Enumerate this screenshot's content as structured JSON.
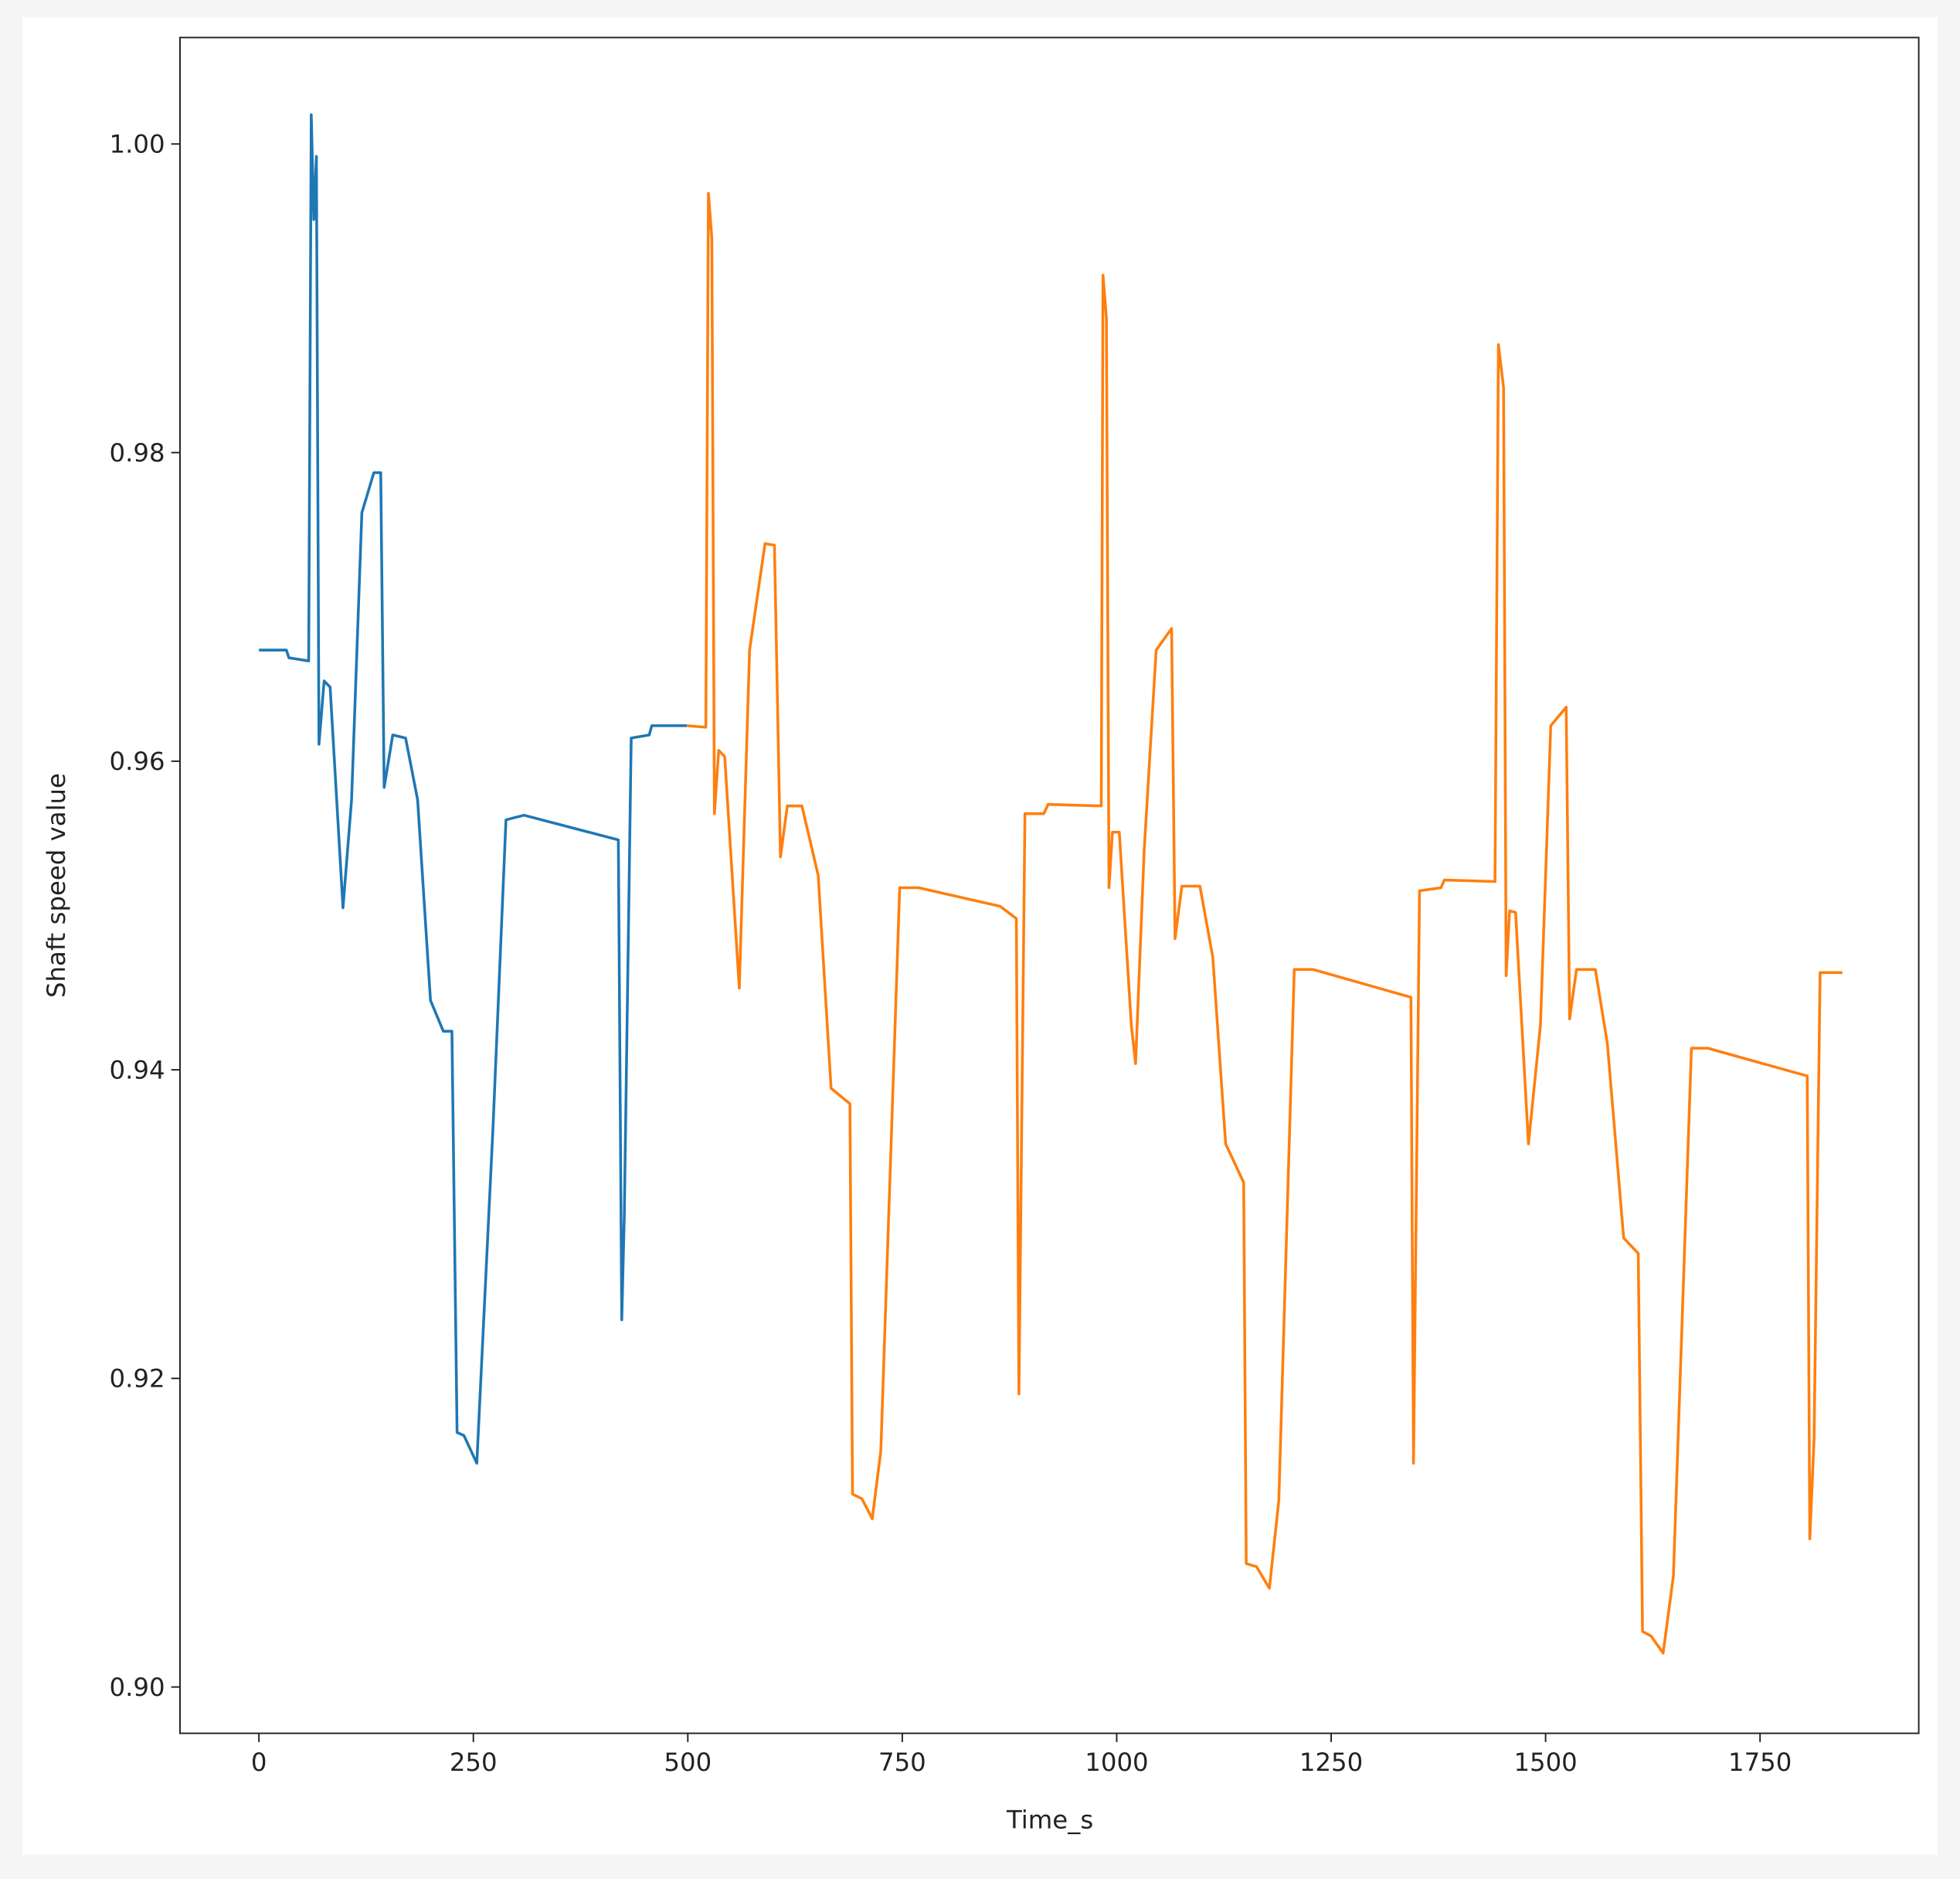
{
  "chart_data": {
    "type": "line",
    "x_label": "Time_s",
    "y_label": "Shaft speed value",
    "xlim": [
      -92,
      1935
    ],
    "ylim": [
      0.897,
      1.0069
    ],
    "xticks": [
      0,
      250,
      500,
      750,
      1000,
      1250,
      1500,
      1750
    ],
    "yticks": [
      {
        "value": 0.9,
        "label": "0.90"
      },
      0.92,
      0.94,
      0.96,
      0.98,
      {
        "value": 1.0,
        "label": "1.00"
      }
    ],
    "series": [
      {
        "color": "#1f77b4",
        "x": [
          0,
          32,
          35,
          58,
          61,
          64,
          67,
          70,
          76,
          83,
          98,
          108,
          120,
          134,
          142,
          146,
          156,
          171,
          185,
          200,
          215,
          225,
          231,
          239,
          254,
          273,
          288,
          309,
          419,
          423,
          426,
          434,
          455,
          458,
          499
        ],
        "values": [
          0.9672,
          0.9672,
          0.9667,
          0.9665,
          1.0019,
          0.9951,
          0.9992,
          0.9611,
          0.9652,
          0.9648,
          0.9505,
          0.9575,
          0.9761,
          0.9787,
          0.9787,
          0.9583,
          0.9617,
          0.9615,
          0.9575,
          0.9445,
          0.9425,
          0.9425,
          0.9165,
          0.9163,
          0.9145,
          0.9364,
          0.9562,
          0.9565,
          0.9549,
          0.9238,
          0.9307,
          0.9615,
          0.9617,
          0.9623,
          0.9623
        ]
      },
      {
        "color": "#ff7f0e",
        "x": [
          499,
          521,
          524,
          528,
          531,
          536,
          543,
          560,
          572,
          590,
          601,
          608,
          616,
          633,
          652,
          667,
          689,
          692,
          703,
          715,
          725,
          747,
          769,
          864,
          883,
          886,
          893,
          915,
          920,
          982,
          984,
          988,
          991,
          995,
          1003,
          1017,
          1022,
          1032,
          1046,
          1064,
          1068,
          1076,
          1097,
          1112,
          1127,
          1148,
          1151,
          1163,
          1178,
          1189,
          1207,
          1229,
          1343,
          1346,
          1353,
          1378,
          1382,
          1441,
          1445,
          1451,
          1454,
          1458,
          1465,
          1480,
          1494,
          1506,
          1524,
          1528,
          1536,
          1558,
          1572,
          1591,
          1608,
          1613,
          1623,
          1637,
          1649,
          1670,
          1689,
          1805,
          1808,
          1813,
          1820,
          1846
        ],
        "values": [
          0.9623,
          0.9622,
          0.9968,
          0.9939,
          0.9566,
          0.9607,
          0.9603,
          0.9453,
          0.9672,
          0.9741,
          0.974,
          0.9538,
          0.9571,
          0.9571,
          0.9526,
          0.9388,
          0.9378,
          0.9125,
          0.9122,
          0.9109,
          0.9153,
          0.9518,
          0.9518,
          0.9506,
          0.9498,
          0.919,
          0.9566,
          0.9566,
          0.9572,
          0.9571,
          0.9915,
          0.9887,
          0.9518,
          0.9554,
          0.9554,
          0.9429,
          0.9404,
          0.9542,
          0.9672,
          0.9686,
          0.9485,
          0.9519,
          0.9519,
          0.9473,
          0.9352,
          0.9327,
          0.908,
          0.9078,
          0.9064,
          0.9121,
          0.9465,
          0.9465,
          0.9447,
          0.9145,
          0.9516,
          0.9518,
          0.9523,
          0.9522,
          0.987,
          0.9842,
          0.9461,
          0.9503,
          0.9502,
          0.9352,
          0.9429,
          0.9623,
          0.9635,
          0.9433,
          0.9465,
          0.9465,
          0.9417,
          0.9291,
          0.9281,
          0.9036,
          0.9033,
          0.9022,
          0.9072,
          0.9414,
          0.9414,
          0.9396,
          0.9096,
          0.9161,
          0.9463,
          0.9463
        ]
      }
    ]
  }
}
